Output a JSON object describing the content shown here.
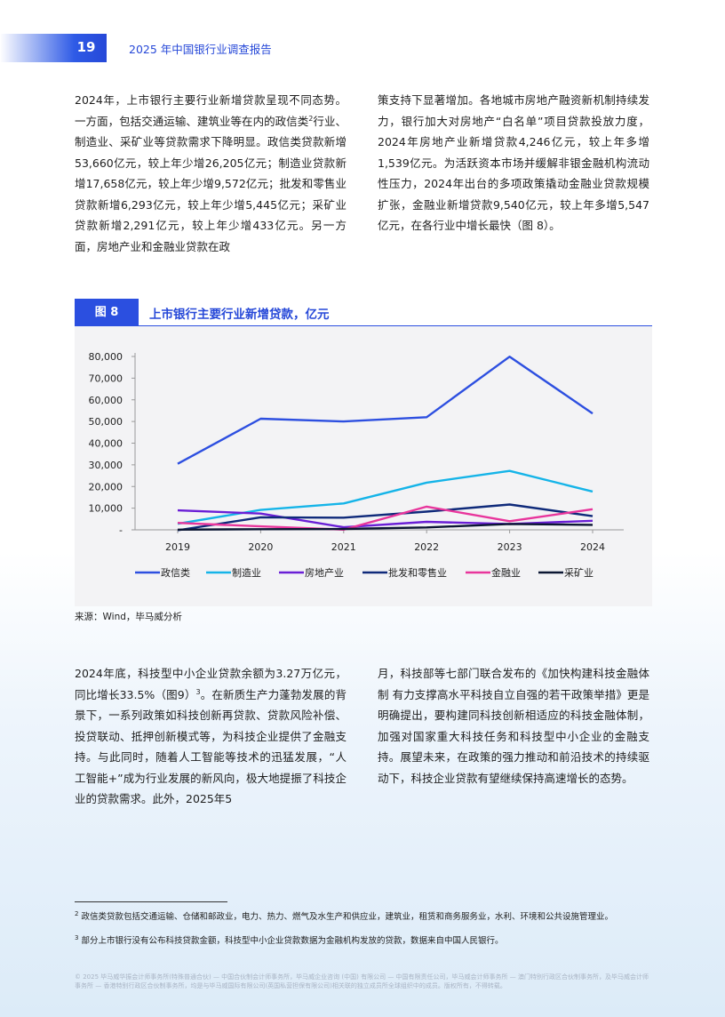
{
  "header": {
    "page_number": "19",
    "report_title": "2025 年中国银行业调查报告"
  },
  "body": {
    "left_col_1": "2024年，上市银行主要行业新增贷款呈现不同态势。一方面，包括交通运输、建筑业等在内的政信类",
    "left_col_1_sup": "2",
    "left_col_1_rest": "行业、制造业、采矿业等贷款需求下降明显。政信类贷款新增53,660亿元，较上年少增26,205亿元；制造业贷款新增17,658亿元，较上年少增9,572亿元；批发和零售业贷款新增6,293亿元，较上年少增5,445亿元；采矿业贷款新增2,291亿元，较上年少增433亿元。另一方面，房地产业和金融业贷款在政",
    "right_col_1": "策支持下显著增加。各地城市房地产融资新机制持续发力，银行加大对房地产“白名单”项目贷款投放力度，2024年房地产业新增贷款4,246亿元，较上年多增1,539亿元。为活跃资本市场并缓解非银金融机构流动性压力，2024年出台的多项政策撬动金融业贷款规模扩张，金融业新增贷款9,540亿元，较上年多增5,547亿元，在各行业中增长最快（图 8）。",
    "left_col_2": "2024年底，科技型中小企业贷款余额为3.27万亿元，同比增长33.5%（图9）",
    "left_col_2_sup": "3",
    "left_col_2_rest": "。在新质生产力蓬勃发展的背景下，一系列政策如科技创新再贷款、贷款风险补偿、投贷联动、抵押创新模式等，为科技企业提供了金融支持。与此同时，随着人工智能等技术的迅猛发展，“人工智能+”成为行业发展的新风向，极大地提振了科技企业的贷款需求。此外，2025年5",
    "right_col_2": "月，科技部等七部门联合发布的《加快构建科技金融体制 有力支撑高水平科技自立自强的若干政策举措》更是明确提出，要构建同科技创新相适应的科技金融体制，加强对国家重大科技任务和科技型中小企业的金融支持。展望未来，在政策的强力推动和前沿技术的持续驱动下，科技企业贷款有望继续保持高速增长的态势。"
  },
  "figure": {
    "label": "图 8",
    "title": "上市银行主要行业新增贷款，亿元",
    "source": "来源：Wind，毕马威分析"
  },
  "chart_data": {
    "type": "line",
    "title": "上市银行主要行业新增贷款，亿元",
    "x": [
      "2019",
      "2020",
      "2021",
      "2022",
      "2023",
      "2024"
    ],
    "ylim": [
      0,
      80000
    ],
    "yticks": [
      "-",
      "10,000",
      "20,000",
      "30,000",
      "40,000",
      "50,000",
      "60,000",
      "70,000",
      "80,000"
    ],
    "grid": false,
    "legend_position": "bottom",
    "series": [
      {
        "name": "政信类",
        "color": "#2d4fe0",
        "values": [
          30500,
          51300,
          50000,
          52000,
          79900,
          53700
        ]
      },
      {
        "name": "制造业",
        "color": "#15b4e8",
        "values": [
          2800,
          9200,
          12200,
          21800,
          27200,
          17700
        ]
      },
      {
        "name": "房地产业",
        "color": "#6a1fd6",
        "values": [
          9000,
          7500,
          1200,
          3700,
          2700,
          4200
        ]
      },
      {
        "name": "批发和零售业",
        "color": "#0f2a7a",
        "values": [
          -200,
          5800,
          5600,
          8400,
          11700,
          6300
        ]
      },
      {
        "name": "金融业",
        "color": "#e8359c",
        "values": [
          3200,
          1600,
          100,
          10700,
          4000,
          9500
        ]
      },
      {
        "name": "采矿业",
        "color": "#0b1633",
        "values": [
          100,
          300,
          400,
          1100,
          2700,
          2300
        ]
      }
    ]
  },
  "footnotes": {
    "fn2_mark": "2",
    "fn2_text": "政信类贷款包括交通运输、仓储和邮政业，电力、热力、燃气及水生产和供应业，建筑业，租赁和商务服务业，水利、环境和公共设施管理业。",
    "fn3_mark": "3",
    "fn3_text": "部分上市银行没有公布科技贷款金额，科技型中小企业贷款数据为金融机构发放的贷款，数据来自中国人民银行。"
  },
  "copyright": "© 2025 毕马威华振会计师事务所(特殊普通合伙) — 中国合伙制会计师事务所，毕马威企业咨询 (中国) 有限公司 — 中国有限责任公司，毕马威会计师事务所 — 澳门特别行政区合伙制事务所，及毕马威会计师事务所 — 香港特别行政区合伙制事务所，均是与毕马威国际有限公司(英国私营担保有限公司)相关联的独立成员所全球组织中的成员。版权所有，不得转载。"
}
